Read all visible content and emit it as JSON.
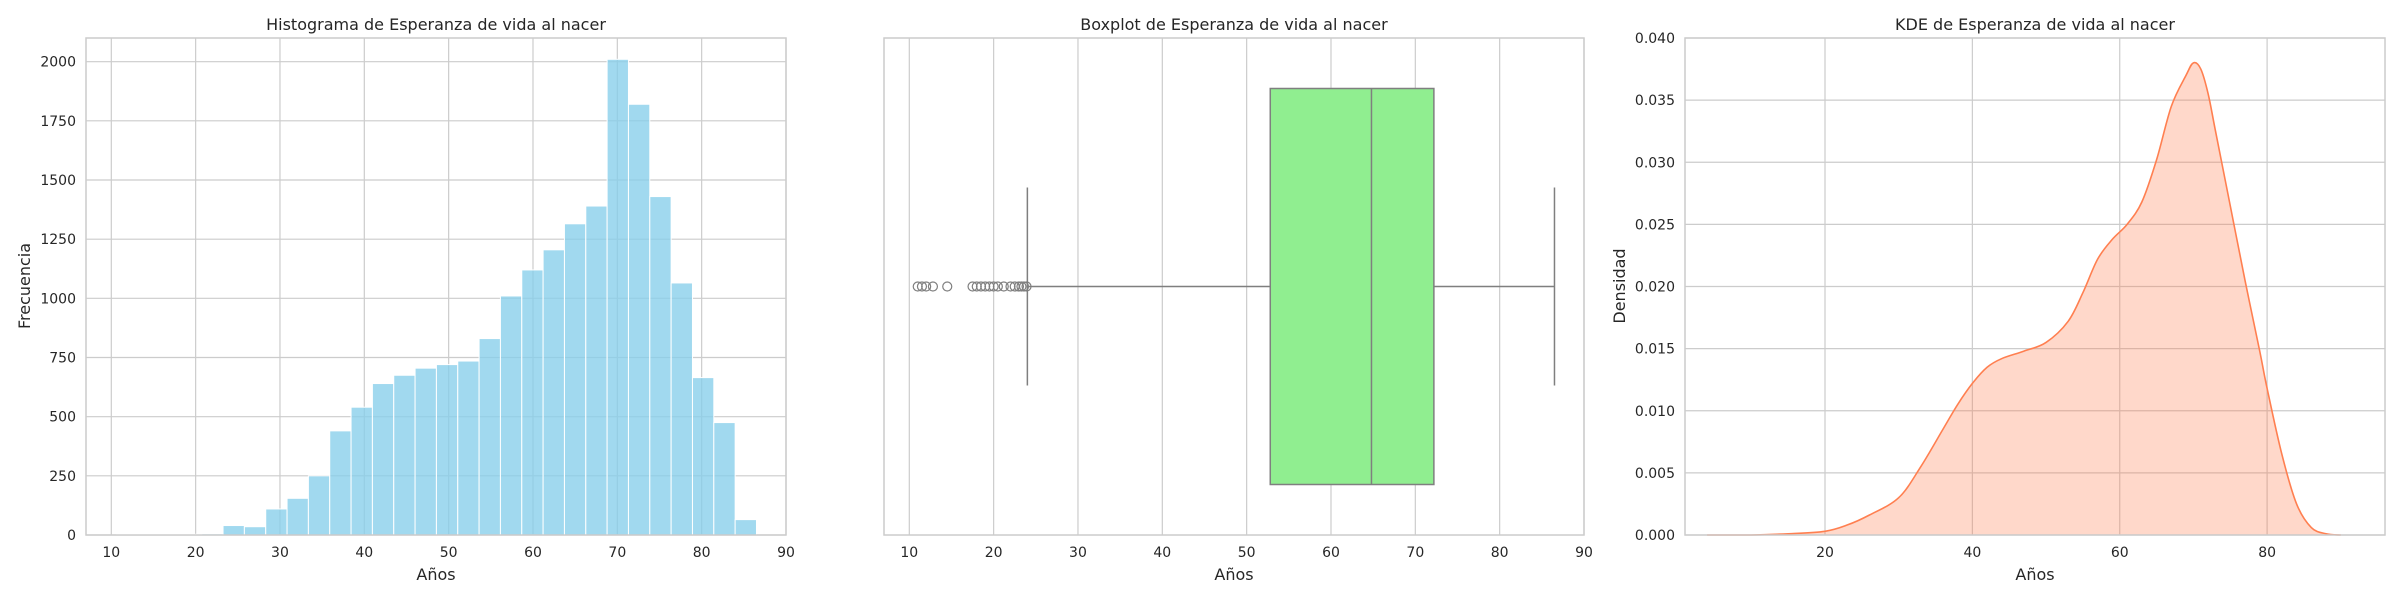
{
  "chart_data": [
    {
      "type": "bar",
      "title": "Histograma de Esperanza de vida al nacer",
      "xlabel": "Años",
      "ylabel": "Frecuencia",
      "xlim": [
        7,
        90
      ],
      "ylim": [
        0,
        2100
      ],
      "xticks": [
        10,
        20,
        30,
        40,
        50,
        60,
        70,
        80,
        90
      ],
      "yticks": [
        0,
        250,
        500,
        750,
        1000,
        1250,
        1500,
        1750,
        2000
      ],
      "grid": true,
      "bin_start": 10.6,
      "bin_width": 2.53,
      "values": [
        2,
        2,
        3,
        3,
        5,
        40,
        35,
        110,
        155,
        250,
        440,
        540,
        640,
        675,
        705,
        720,
        735,
        830,
        1010,
        1120,
        1205,
        1315,
        1390,
        2010,
        1820,
        1430,
        1065,
        665,
        475,
        65
      ],
      "color": "#87ceeb"
    },
    {
      "type": "box",
      "title": "Boxplot de Esperanza de vida al nacer",
      "xlabel": "Años",
      "xlim": [
        7,
        90
      ],
      "xticks": [
        10,
        20,
        30,
        40,
        50,
        60,
        70,
        80,
        90
      ],
      "grid": true,
      "whisker_low": 24.0,
      "q1": 52.8,
      "median": 64.8,
      "q3": 72.2,
      "whisker_high": 86.5,
      "outliers": [
        11.0,
        11.5,
        12.0,
        12.8,
        14.5,
        17.5,
        18.0,
        18.5,
        19.0,
        19.5,
        20.0,
        20.5,
        21.2,
        22.0,
        22.5,
        23.0,
        23.3,
        23.6,
        23.9
      ],
      "color": "#90ee90"
    },
    {
      "type": "area",
      "title": "KDE de Esperanza de vida al nacer",
      "xlabel": "Años",
      "ylabel": "Densidad",
      "xlim": [
        1,
        96
      ],
      "ylim": [
        0,
        0.04
      ],
      "xticks": [
        20,
        40,
        60,
        80
      ],
      "yticks": [
        0.0,
        0.005,
        0.01,
        0.015,
        0.02,
        0.025,
        0.03,
        0.035,
        0.04
      ],
      "ytick_labels": [
        "0.000",
        "0.005",
        "0.010",
        "0.015",
        "0.020",
        "0.025",
        "0.030",
        "0.035",
        "0.040"
      ],
      "grid": true,
      "x": [
        4,
        10,
        15,
        20,
        23,
        26,
        30,
        33,
        36,
        38,
        40,
        42,
        44,
        47,
        50,
        53,
        55,
        57,
        59,
        61,
        63,
        65,
        67,
        69,
        70,
        71,
        72,
        73,
        75,
        77,
        79,
        80,
        82,
        84,
        86,
        88,
        90
      ],
      "y": [
        0.0,
        0.0,
        0.0001,
        0.0003,
        0.0008,
        0.0016,
        0.003,
        0.0055,
        0.0085,
        0.0105,
        0.0122,
        0.0135,
        0.0142,
        0.0148,
        0.0155,
        0.0172,
        0.0195,
        0.0222,
        0.0238,
        0.025,
        0.0268,
        0.0302,
        0.0345,
        0.037,
        0.038,
        0.0375,
        0.0355,
        0.0325,
        0.0265,
        0.0205,
        0.0148,
        0.0118,
        0.0065,
        0.0025,
        0.0006,
        0.0001,
        0.0
      ],
      "color": "#ff7f50"
    }
  ]
}
